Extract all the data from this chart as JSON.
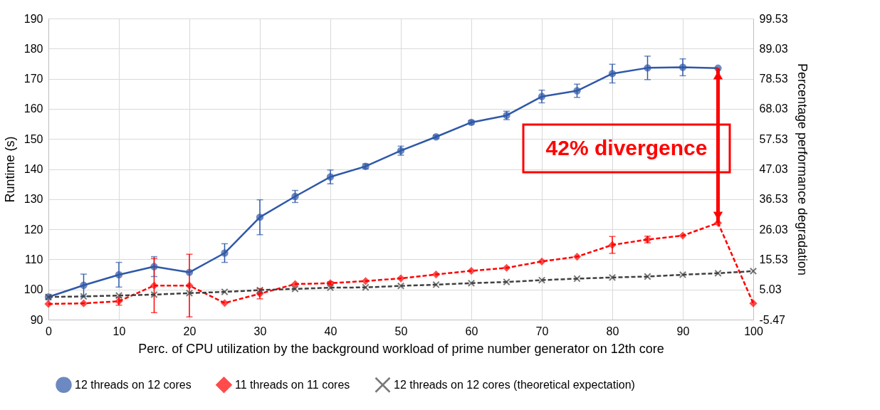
{
  "chart_data": {
    "type": "line",
    "xlabel": "Perc. of CPU utilization by the background workload of prime number generator on 12th core",
    "ylabel": "Runtime (s)",
    "y2label": "Percentage performance degradation",
    "x": [
      0,
      5,
      10,
      15,
      20,
      25,
      30,
      35,
      40,
      45,
      50,
      55,
      60,
      65,
      70,
      75,
      80,
      85,
      90,
      95,
      100
    ],
    "series": [
      {
        "name": "12 threads on 12 cores",
        "color": "#2f58a8",
        "marker": "circle",
        "line_style": "solid",
        "values": [
          97.5,
          101.4,
          104.9,
          107.6,
          105.7,
          112.1,
          124.0,
          130.9,
          137.4,
          140.9,
          146.1,
          150.7,
          155.5,
          157.8,
          164.1,
          166.0,
          171.7,
          173.6,
          173.8,
          173.5,
          null
        ],
        "errors": [
          null,
          3.7,
          4.1,
          3.3,
          null,
          3.1,
          5.8,
          2.0,
          2.3,
          0.8,
          1.5,
          0.5,
          0.6,
          1.4,
          2.1,
          2.2,
          3.1,
          3.9,
          2.8,
          null,
          null
        ]
      },
      {
        "name": "11 threads on 11 cores",
        "color": "#ff0000",
        "marker": "diamond",
        "line_style": "dashed",
        "values": [
          95.2,
          95.4,
          96.1,
          101.3,
          101.3,
          95.5,
          98.6,
          101.8,
          102.1,
          102.8,
          103.7,
          105.0,
          106.2,
          107.2,
          109.3,
          110.9,
          114.8,
          116.6,
          117.9,
          122.1,
          95.4
        ],
        "errors": [
          null,
          null,
          1.3,
          9.0,
          10.4,
          null,
          1.7,
          null,
          0.5,
          null,
          null,
          null,
          null,
          null,
          null,
          null,
          2.8,
          1.1,
          null,
          null,
          null
        ]
      },
      {
        "name": "12 threads on 12 cores (theoretical expectation)",
        "color": "#404040",
        "marker": "cross",
        "line_style": "dashed",
        "values": [
          97.5,
          97.7,
          98.0,
          98.3,
          98.8,
          99.2,
          99.8,
          100.2,
          100.6,
          100.7,
          101.2,
          101.6,
          102.1,
          102.5,
          103.1,
          103.6,
          104.0,
          104.3,
          104.9,
          105.4,
          106.1
        ]
      }
    ],
    "xlim": [
      0,
      100
    ],
    "xticks": [
      0,
      10,
      20,
      30,
      40,
      50,
      60,
      70,
      80,
      90,
      100
    ],
    "ylim": [
      90,
      190
    ],
    "yticks": [
      90,
      100,
      110,
      120,
      130,
      140,
      150,
      160,
      170,
      180,
      190
    ],
    "y2lim": [
      -5.47,
      99.53
    ],
    "y2ticks": [
      -5.47,
      5.03,
      15.53,
      26.03,
      36.53,
      47.03,
      57.53,
      68.03,
      78.53,
      89.03,
      99.53
    ],
    "annotations": [
      "42% divergence"
    ],
    "grid": true,
    "legend": "bottom"
  }
}
